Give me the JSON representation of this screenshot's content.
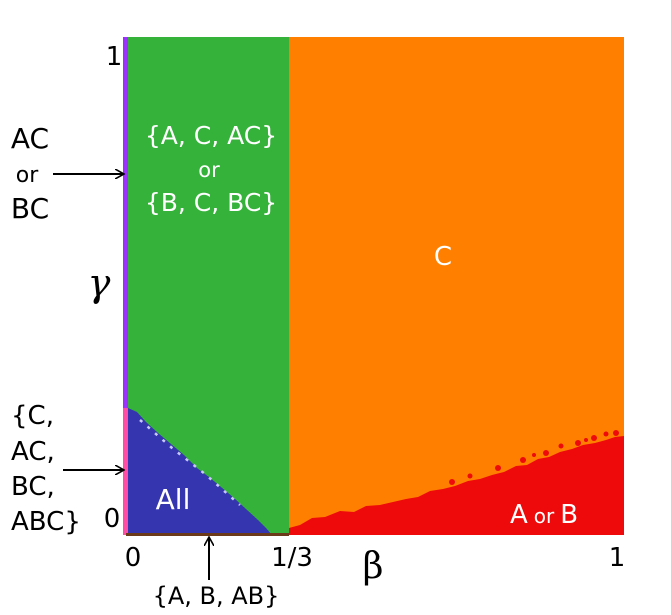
{
  "axes": {
    "x_label": "β",
    "y_label": "γ",
    "x_ticks": [
      "0",
      "1/3",
      "1"
    ],
    "y_ticks": [
      "0",
      "1"
    ],
    "x_range": [
      0,
      1
    ],
    "y_range": [
      0,
      1
    ]
  },
  "regions": [
    {
      "id": "orange",
      "text": "C",
      "color": "#ff7f00"
    },
    {
      "id": "green",
      "lines": [
        "{A, C, AC}",
        "or",
        "{B, C, BC}"
      ],
      "color": "#35b23a"
    },
    {
      "id": "blue",
      "text": "All",
      "color": "#3535b0"
    },
    {
      "id": "red",
      "text_a": "A",
      "text_or": "or",
      "text_b": "B",
      "color": "#ee0a0a"
    }
  ],
  "edge_colors": {
    "left_upper": "#9b30ff",
    "left_lower": "#ff4da6",
    "bottom": "#6b3a1b"
  },
  "annotations": {
    "left_top": [
      "AC",
      "or",
      "BC"
    ],
    "left_bottom": [
      "{C,",
      "AC,",
      "BC,",
      "ABC}"
    ],
    "bottom": "{A, B, AB}"
  }
}
